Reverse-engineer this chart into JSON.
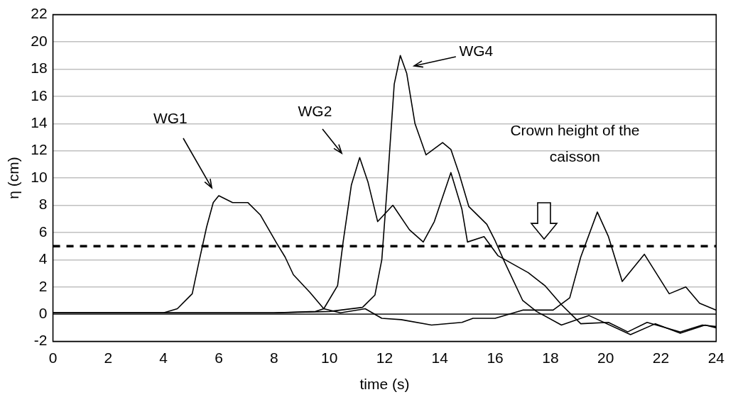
{
  "chart_data": {
    "type": "line",
    "xlabel": "time (s)",
    "ylabel": "η (cm)",
    "xlim": [
      0,
      24
    ],
    "xticks": [
      0,
      2,
      4,
      6,
      8,
      10,
      12,
      14,
      16,
      18,
      20,
      22,
      24
    ],
    "ylim": [
      -2,
      22
    ],
    "yticks": [
      -2,
      0,
      2,
      4,
      6,
      8,
      10,
      12,
      14,
      16,
      18,
      20,
      22
    ],
    "grid": "y",
    "legend": false,
    "marker": "none",
    "line_style": "solid",
    "series": [
      {
        "color": "#000000",
        "x": [
          0,
          2,
          4,
          4.5,
          5.04,
          5.3,
          5.56,
          5.8,
          6.0,
          6.5,
          7.05,
          7.5,
          8.1,
          8.4,
          8.7,
          9.3,
          9.8,
          10.4,
          11.3,
          11.9,
          12.6,
          13.7,
          14.8,
          15.2,
          16.0,
          17.0,
          18.1,
          18.7,
          19.1,
          19.7,
          20.1,
          20.6,
          21.4,
          22.3,
          22.9,
          23.4,
          24
        ],
        "values": [
          0.1,
          0.1,
          0.1,
          0.4,
          1.5,
          4,
          6.4,
          8.2,
          8.7,
          8.2,
          8.2,
          7.3,
          5.2,
          4.2,
          2.9,
          1.6,
          0.4,
          0.1,
          0.4,
          -0.3,
          -0.4,
          -0.8,
          -0.6,
          -0.3,
          -0.3,
          0.3,
          0.3,
          1.2,
          4.2,
          7.5,
          5.7,
          2.4,
          4.4,
          1.5,
          2.0,
          0.8,
          0.3
        ]
      },
      {
        "color": "#000000",
        "x": [
          0,
          4,
          8,
          9.5,
          9.8,
          10.3,
          10.5,
          10.8,
          11.1,
          11.4,
          11.75,
          12.3,
          12.9,
          13.4,
          13.8,
          14.4,
          14.8,
          15.0,
          15.6,
          16.1,
          17.2,
          17.8,
          18.4,
          19.1,
          20.1,
          20.8,
          21.5,
          22.7,
          23.5,
          24
        ],
        "values": [
          0.1,
          0.1,
          0.1,
          0.2,
          0.4,
          2.1,
          5.3,
          9.5,
          11.5,
          9.7,
          6.8,
          8.0,
          6.2,
          5.3,
          6.8,
          10.4,
          7.7,
          5.3,
          5.7,
          4.3,
          3.05,
          2.1,
          0.7,
          -0.7,
          -0.6,
          -1.3,
          -0.6,
          -1.3,
          -0.8,
          -0.9
        ]
      },
      {
        "color": "#000000",
        "x": [
          0,
          4,
          8,
          10,
          11.2,
          11.65,
          11.9,
          12.1,
          12.35,
          12.57,
          12.8,
          13.1,
          13.5,
          14.1,
          14.4,
          14.7,
          15.05,
          15.7,
          16.0,
          16.35,
          17.0,
          17.5,
          18.4,
          19.4,
          20.9,
          21.8,
          22.7,
          23.6,
          24
        ],
        "values": [
          0.1,
          0.1,
          0.1,
          0.2,
          0.5,
          1.4,
          4,
          9.5,
          16.9,
          19.0,
          17.7,
          14,
          11.7,
          12.6,
          12.1,
          10.3,
          7.9,
          6.6,
          5.4,
          3.8,
          1.0,
          0.2,
          -0.8,
          -0.1,
          -1.5,
          -0.7,
          -1.4,
          -0.8,
          -1.0
        ]
      }
    ],
    "ref_lines": [
      {
        "axis": "y",
        "value": 5,
        "color": "#000000",
        "line_style": "dashed"
      },
      {
        "axis": "y",
        "value": 0,
        "color": "#000000",
        "line_style": "solid"
      }
    ],
    "annotations": [
      "WG1",
      "WG2",
      "WG4",
      "Crown height of the caisson"
    ]
  }
}
